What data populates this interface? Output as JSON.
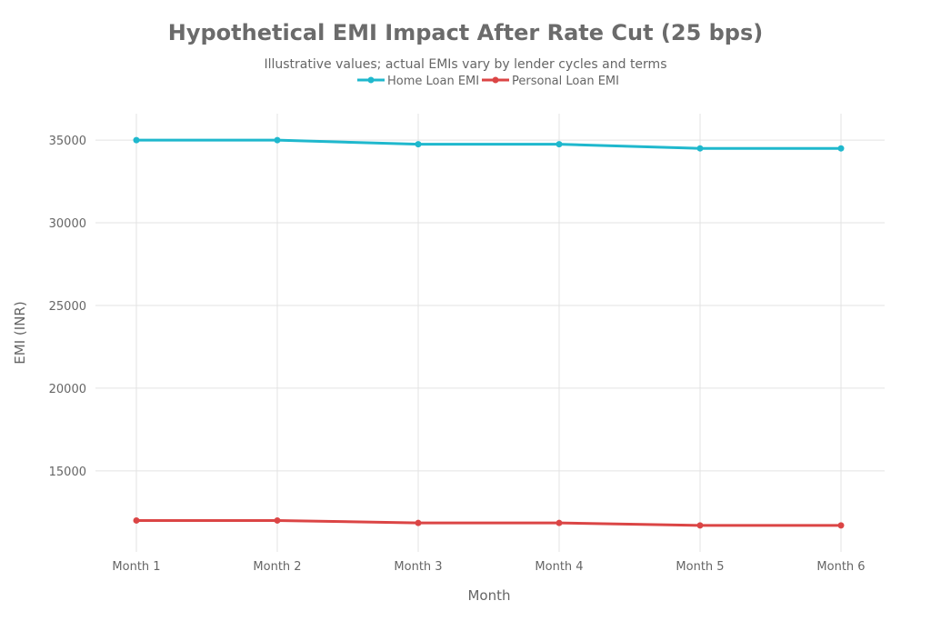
{
  "chart_data": {
    "type": "line",
    "title": "Hypothetical EMI Impact After Rate Cut (25 bps)",
    "subtitle": "Illustrative values; actual EMIs vary by lender cycles and terms",
    "xlabel": "Month",
    "ylabel": "EMI (INR)",
    "categories": [
      "Month 1",
      "Month 2",
      "Month 3",
      "Month 4",
      "Month 5",
      "Month 6"
    ],
    "yticks": [
      15000,
      20000,
      25000,
      30000,
      35000
    ],
    "ylim": [
      10100,
      36600
    ],
    "grid": true,
    "legend_position": "top-center",
    "series": [
      {
        "name": "Home Loan EMI",
        "color": "#1fb8cd",
        "values": [
          35000,
          35000,
          34750,
          34750,
          34500,
          34500
        ]
      },
      {
        "name": "Personal Loan EMI",
        "color": "#db4545",
        "values": [
          12000,
          12000,
          11850,
          11850,
          11700,
          11700
        ]
      }
    ]
  }
}
